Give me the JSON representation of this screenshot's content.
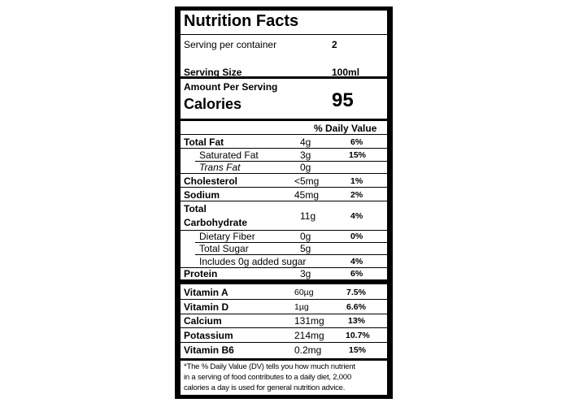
{
  "header": {
    "title": "Nutrition Facts",
    "servings_label": "Serving per container",
    "servings_value": "2",
    "serving_size_label": "Serving Size",
    "serving_size_value": "100ml"
  },
  "calories": {
    "amount_label": "Amount Per Serving",
    "label": "Calories",
    "value": "95"
  },
  "nutrients": {
    "dv_header": "% Daily Value",
    "rows": [
      {
        "name": "Total Fat",
        "amount": "4g",
        "dv": "6%"
      },
      {
        "name": "Saturated Fat",
        "amount": "3g",
        "dv": "15%"
      },
      {
        "name": "Trans Fat",
        "amount": "0g",
        "dv": ""
      },
      {
        "name": "Cholesterol",
        "amount": "<5mg",
        "dv": "1%"
      },
      {
        "name": "Sodium",
        "amount": "45mg",
        "dv": "2%"
      },
      {
        "name": "Total Carbohydrate",
        "name_line1": "Total",
        "name_line2": "Carbohydrate",
        "amount": "11g",
        "dv": "4%"
      },
      {
        "name": "Dietary Fiber",
        "amount": "0g",
        "dv": "0%"
      },
      {
        "name": "Total Sugar",
        "amount": "5g",
        "dv": ""
      },
      {
        "name": "Includes 0g added sugar",
        "amount": "",
        "dv": "4%"
      },
      {
        "name": "Protein",
        "amount": "3g",
        "dv": "6%"
      }
    ]
  },
  "vitamins": [
    {
      "name": "Vitamin A",
      "amount": "60µg",
      "dv": "7.5%"
    },
    {
      "name": "Vitamin D",
      "amount": "1µg",
      "dv": "6.6%"
    },
    {
      "name": "Calcium",
      "amount": "131mg",
      "dv": "13%"
    },
    {
      "name": "Potassium",
      "amount": "214mg",
      "dv": "10.7%"
    },
    {
      "name": "Vitamin B6",
      "amount": "0.2mg",
      "dv": "15%"
    }
  ],
  "footnote": {
    "line1": "*The % Daily Value (DV) tells you how much nutrient",
    "line2": "in a serving of food contributes to a daily diet, 2,000",
    "line3": "calories a day is used for general nutrition advice."
  }
}
